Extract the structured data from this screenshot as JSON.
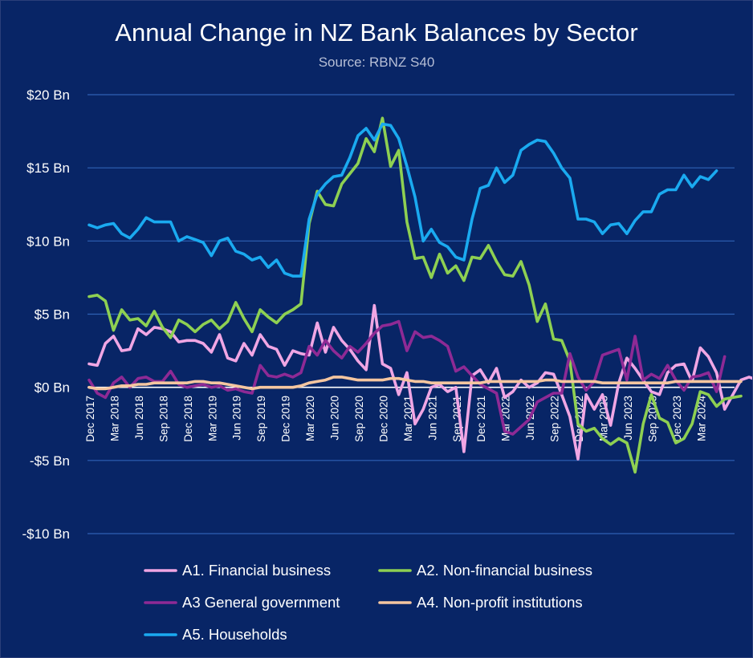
{
  "colors": {
    "background": "#082566",
    "grid": "#2f62b5",
    "zero_line": "#ffffff",
    "text": "#ffffff",
    "subtitle": "#b7bfd6",
    "financial": "#f0a6e4",
    "non_financial": "#8ed052",
    "government": "#8e2a95",
    "non_profit": "#f5c6a0",
    "households": "#1aaaf0"
  },
  "chart_data": {
    "type": "line",
    "title": "Annual Change in NZ Bank Balances by Sector",
    "subtitle": "Source: RBNZ S40",
    "xlabel": "",
    "ylabel": "",
    "ylim": [
      -10,
      20
    ],
    "y_ticks": [
      {
        "value": 20,
        "label": "$20 Bn"
      },
      {
        "value": 15,
        "label": "$15 Bn"
      },
      {
        "value": 10,
        "label": "$10 Bn"
      },
      {
        "value": 5,
        "label": "$5 Bn"
      },
      {
        "value": 0,
        "label": "$0 Bn"
      },
      {
        "value": -5,
        "label": "-$5 Bn"
      },
      {
        "value": -10,
        "label": "-$10 Bn"
      }
    ],
    "x_start": "Dec 2017",
    "x_step_months": 1,
    "x_tick_labels": [
      {
        "index": 0,
        "label": "Dec 2017"
      },
      {
        "index": 3,
        "label": "Mar 2018"
      },
      {
        "index": 6,
        "label": "Jun 2018"
      },
      {
        "index": 9,
        "label": "Sep 2018"
      },
      {
        "index": 12,
        "label": "Dec 2018"
      },
      {
        "index": 15,
        "label": "Mar 2019"
      },
      {
        "index": 18,
        "label": "Jun 2019"
      },
      {
        "index": 21,
        "label": "Sep 2019"
      },
      {
        "index": 24,
        "label": "Dec 2019"
      },
      {
        "index": 27,
        "label": "Mar 2020"
      },
      {
        "index": 30,
        "label": "Jun 2020"
      },
      {
        "index": 33,
        "label": "Sep 2020"
      },
      {
        "index": 36,
        "label": "Dec 2020"
      },
      {
        "index": 39,
        "label": "Mar 2021"
      },
      {
        "index": 42,
        "label": "Jun 2021"
      },
      {
        "index": 45,
        "label": "Sep 2021"
      },
      {
        "index": 48,
        "label": "Dec 2021"
      },
      {
        "index": 51,
        "label": "Mar 2022"
      },
      {
        "index": 54,
        "label": "Jun 2022"
      },
      {
        "index": 57,
        "label": "Sep 2022"
      },
      {
        "index": 60,
        "label": "Dec 2022"
      },
      {
        "index": 63,
        "label": "Mar 2023"
      },
      {
        "index": 66,
        "label": "Jun 2023"
      },
      {
        "index": 69,
        "label": "Sep 2023"
      },
      {
        "index": 72,
        "label": "Dec 2023"
      },
      {
        "index": 75,
        "label": "Mar 2024"
      }
    ],
    "legend_position": "bottom",
    "series": [
      {
        "name": "A1. Financial business",
        "color_key": "financial",
        "values": [
          1.6,
          1.5,
          3.0,
          3.5,
          2.5,
          2.6,
          4.0,
          3.6,
          4.1,
          4.0,
          3.8,
          3.1,
          3.2,
          3.2,
          3.0,
          2.4,
          3.6,
          2.0,
          1.8,
          3.0,
          2.2,
          3.6,
          2.8,
          2.6,
          1.5,
          2.5,
          2.3,
          2.2,
          4.4,
          2.4,
          4.1,
          3.2,
          2.6,
          1.8,
          1.2,
          5.6,
          1.6,
          1.3,
          -0.5,
          1.0,
          -2.5,
          -1.5,
          0.0,
          0.2,
          -0.3,
          0.0,
          -4.4,
          0.8,
          1.2,
          0.3,
          1.3,
          -0.7,
          -0.3,
          0.5,
          0.0,
          0.3,
          1.0,
          0.9,
          -0.5,
          -2.0,
          -4.9,
          -0.5,
          -1.5,
          -0.5,
          -2.6,
          0.3,
          2.0,
          1.3,
          0.5,
          -0.3,
          -0.5,
          1.0,
          1.5,
          1.6,
          0.4,
          2.7,
          2.1,
          1.0,
          -1.5,
          -0.5,
          0.5,
          0.7,
          0.5
        ]
      },
      {
        "name": "A2. Non-financial business",
        "color_key": "non_financial",
        "values": [
          6.2,
          6.3,
          5.9,
          3.9,
          5.3,
          4.6,
          4.7,
          4.2,
          5.2,
          4.1,
          3.4,
          4.6,
          4.3,
          3.8,
          4.3,
          4.6,
          4.0,
          4.5,
          5.8,
          4.7,
          3.8,
          5.3,
          4.8,
          4.4,
          5.0,
          5.3,
          5.7,
          11.2,
          13.4,
          12.5,
          12.4,
          13.9,
          14.6,
          15.3,
          17.0,
          16.1,
          18.4,
          15.1,
          16.2,
          11.3,
          8.8,
          8.9,
          7.5,
          9.1,
          7.8,
          8.3,
          7.3,
          8.9,
          8.8,
          9.7,
          8.6,
          7.7,
          7.6,
          8.6,
          7.0,
          4.5,
          5.7,
          3.3,
          3.2,
          1.8,
          -2.5,
          -3.0,
          -2.8,
          -3.5,
          -3.9,
          -3.5,
          -3.8,
          -5.8,
          -2.5,
          -0.5,
          -2.1,
          -2.4,
          -3.8,
          -3.5,
          -2.5,
          -0.3,
          -0.5,
          -1.3,
          -0.8,
          -0.7,
          -0.6
        ]
      },
      {
        "name": "A3 General government",
        "color_key": "government",
        "values": [
          0.5,
          -0.4,
          -0.7,
          0.3,
          0.7,
          0.0,
          0.6,
          0.7,
          0.4,
          0.4,
          1.1,
          0.2,
          0.0,
          0.1,
          0.2,
          0.0,
          0.1,
          -0.2,
          -0.1,
          -0.3,
          -0.4,
          1.5,
          0.8,
          0.7,
          0.9,
          0.7,
          1.0,
          2.8,
          2.2,
          3.2,
          2.5,
          2.0,
          2.8,
          2.4,
          3.0,
          3.7,
          4.2,
          4.3,
          4.5,
          2.5,
          3.8,
          3.4,
          3.5,
          3.2,
          2.8,
          1.1,
          1.4,
          0.8,
          0.2,
          -0.1,
          -0.4,
          -3.0,
          -3.2,
          -2.7,
          -2.2,
          -1.0,
          -0.7,
          -0.4,
          -0.4,
          2.3,
          0.7,
          -0.2,
          0.4,
          2.2,
          2.4,
          2.6,
          0.5,
          3.5,
          0.5,
          0.9,
          0.6,
          1.5,
          0.5,
          -0.2,
          0.7,
          0.8,
          1.0,
          -0.3,
          2.1
        ]
      },
      {
        "name": "A4. Non-profit institutions",
        "color_key": "non_profit",
        "values": [
          0.0,
          -0.1,
          -0.1,
          0.0,
          0.1,
          0.1,
          0.2,
          0.2,
          0.3,
          0.3,
          0.3,
          0.3,
          0.3,
          0.4,
          0.4,
          0.3,
          0.3,
          0.2,
          0.1,
          0.0,
          -0.1,
          0.0,
          0.0,
          0.0,
          0.0,
          0.0,
          0.1,
          0.3,
          0.4,
          0.5,
          0.7,
          0.7,
          0.6,
          0.5,
          0.5,
          0.5,
          0.5,
          0.6,
          0.6,
          0.5,
          0.4,
          0.4,
          0.3,
          0.3,
          0.3,
          0.3,
          0.3,
          0.3,
          0.3,
          0.4,
          0.4,
          0.4,
          0.4,
          0.4,
          0.4,
          0.4,
          0.5,
          0.5,
          0.4,
          0.4,
          0.4,
          0.4,
          0.4,
          0.3,
          0.3,
          0.3,
          0.3,
          0.3,
          0.3,
          0.3,
          0.3,
          0.3,
          0.4,
          0.4,
          0.4,
          0.4,
          0.4,
          0.4,
          0.4,
          0.4,
          0.4
        ]
      },
      {
        "name": "A5. Households",
        "color_key": "households",
        "values": [
          11.1,
          10.9,
          11.1,
          11.2,
          10.5,
          10.2,
          10.8,
          11.6,
          11.3,
          11.3,
          11.3,
          10.0,
          10.3,
          10.1,
          9.9,
          9.0,
          10.0,
          10.2,
          9.3,
          9.1,
          8.7,
          8.9,
          8.2,
          8.7,
          7.8,
          7.6,
          7.6,
          11.5,
          13.2,
          13.9,
          14.4,
          14.5,
          15.7,
          17.2,
          17.7,
          16.9,
          18.0,
          17.9,
          17.0,
          15.1,
          13.0,
          10.0,
          10.8,
          9.9,
          9.6,
          8.9,
          8.7,
          11.5,
          13.6,
          13.8,
          15.0,
          14.0,
          14.5,
          16.2,
          16.6,
          16.9,
          16.8,
          16.0,
          15.0,
          14.3,
          11.5,
          11.5,
          11.3,
          10.5,
          11.1,
          11.2,
          10.5,
          11.4,
          12.0,
          12.0,
          13.2,
          13.5,
          13.5,
          14.5,
          13.7,
          14.4,
          14.2,
          14.8
        ]
      }
    ]
  },
  "legend": {
    "items": [
      {
        "label": "A1. Financial business",
        "color_key": "financial"
      },
      {
        "label": "A2. Non-financial business",
        "color_key": "non_financial"
      },
      {
        "label": "A3 General government",
        "color_key": "government"
      },
      {
        "label": "A4. Non-profit institutions",
        "color_key": "non_profit"
      },
      {
        "label": "A5. Households",
        "color_key": "households"
      }
    ]
  }
}
